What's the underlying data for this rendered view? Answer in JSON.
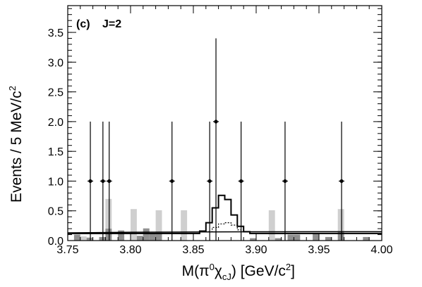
{
  "chart_data": {
    "type": "histogram",
    "panel_label": "(c)",
    "panel_title": "J=2",
    "xlabel": {
      "prefix": "M(π",
      "sup1": "0",
      "chi": "χ",
      "sub1": "cJ",
      "middle": ")   [GeV/c",
      "sup2": "2",
      "suffix": "]"
    },
    "ylabel": {
      "main": "Events / 5 MeV/c",
      "sup": "2"
    },
    "xlim": [
      3.75,
      4.0
    ],
    "ylim": [
      0,
      3.95
    ],
    "x_ticks": [
      3.75,
      3.8,
      3.85,
      3.9,
      3.95,
      4.0
    ],
    "x_tick_labels": [
      "3.75",
      "3.80",
      "3.85",
      "3.90",
      "3.95",
      "4.00"
    ],
    "y_ticks": [
      0,
      0.5,
      1.0,
      1.5,
      2.0,
      2.5,
      3.0,
      3.5
    ],
    "y_tick_labels": [
      "0.0",
      "0.5",
      "1.0",
      "1.5",
      "2.0",
      "2.5",
      "3.0",
      "3.5"
    ],
    "grid": false,
    "series": [
      {
        "kind": "data_points",
        "points": [
          {
            "x": 3.768,
            "y": 1.0,
            "ylo": 0.0,
            "yhi": 2.0
          },
          {
            "x": 3.778,
            "y": 1.0,
            "ylo": 0.0,
            "yhi": 2.0
          },
          {
            "x": 3.783,
            "y": 1.0,
            "ylo": 0.0,
            "yhi": 2.0
          },
          {
            "x": 3.833,
            "y": 1.0,
            "ylo": 0.0,
            "yhi": 2.0
          },
          {
            "x": 3.863,
            "y": 1.0,
            "ylo": 0.0,
            "yhi": 2.0
          },
          {
            "x": 3.868,
            "y": 2.0,
            "ylo": 0.0,
            "yhi": 3.4
          },
          {
            "x": 3.888,
            "y": 1.0,
            "ylo": 0.0,
            "yhi": 2.0
          },
          {
            "x": 3.923,
            "y": 1.0,
            "ylo": 0.0,
            "yhi": 2.0
          },
          {
            "x": 3.968,
            "y": 1.0,
            "ylo": 0.0,
            "yhi": 2.0
          }
        ]
      },
      {
        "kind": "light_bars",
        "color": "#cfcfcf",
        "bars": [
          {
            "x0": 3.78,
            "x1": 3.785,
            "y": 0.7
          },
          {
            "x0": 3.8,
            "x1": 3.805,
            "y": 0.53
          },
          {
            "x0": 3.81,
            "x1": 3.815,
            "y": 0.21
          },
          {
            "x0": 3.82,
            "x1": 3.825,
            "y": 0.51
          },
          {
            "x0": 3.84,
            "x1": 3.845,
            "y": 0.51
          },
          {
            "x0": 3.91,
            "x1": 3.915,
            "y": 0.51
          },
          {
            "x0": 3.965,
            "x1": 3.97,
            "y": 0.53
          },
          {
            "x0": 3.76,
            "x1": 3.765,
            "y": 0.07
          }
        ]
      },
      {
        "kind": "dark_bars",
        "color": "#8f8f8f",
        "bars": [
          {
            "x0": 3.755,
            "x1": 3.76,
            "y": 0.1
          },
          {
            "x0": 3.765,
            "x1": 3.77,
            "y": 0.05
          },
          {
            "x0": 3.775,
            "x1": 3.78,
            "y": 0.06
          },
          {
            "x0": 3.78,
            "x1": 3.785,
            "y": 0.2
          },
          {
            "x0": 3.79,
            "x1": 3.795,
            "y": 0.17
          },
          {
            "x0": 3.805,
            "x1": 3.81,
            "y": 0.08
          },
          {
            "x0": 3.81,
            "x1": 3.815,
            "y": 0.2
          },
          {
            "x0": 3.815,
            "x1": 3.82,
            "y": 0.13
          },
          {
            "x0": 3.82,
            "x1": 3.825,
            "y": 0.11
          },
          {
            "x0": 3.895,
            "x1": 3.9,
            "y": 0.04
          },
          {
            "x0": 3.915,
            "x1": 3.92,
            "y": 0.04
          },
          {
            "x0": 3.925,
            "x1": 3.93,
            "y": 0.1
          },
          {
            "x0": 3.93,
            "x1": 3.935,
            "y": 0.1
          },
          {
            "x0": 3.945,
            "x1": 3.95,
            "y": 0.12
          },
          {
            "x0": 3.955,
            "x1": 3.96,
            "y": 0.06
          },
          {
            "x0": 3.965,
            "x1": 3.97,
            "y": 0.15
          },
          {
            "x0": 3.985,
            "x1": 3.99,
            "y": 0.06
          }
        ]
      },
      {
        "kind": "fit_step",
        "x_edges": [
          3.75,
          3.855,
          3.86,
          3.865,
          3.87,
          3.875,
          3.88,
          3.885,
          3.89,
          3.895,
          4.0
        ],
        "y": [
          0.12,
          0.16,
          0.3,
          0.55,
          0.76,
          0.69,
          0.43,
          0.24,
          0.15,
          0.12
        ]
      },
      {
        "kind": "dotted_step",
        "x_edges": [
          3.862,
          3.865,
          3.87,
          3.875,
          3.88,
          3.885,
          3.888
        ],
        "y": [
          0.15,
          0.22,
          0.28,
          0.3,
          0.26,
          0.18
        ]
      },
      {
        "kind": "background_line",
        "points": [
          [
            3.75,
            0.13
          ],
          [
            3.8,
            0.14
          ],
          [
            3.85,
            0.145
          ],
          [
            3.9,
            0.148
          ],
          [
            3.95,
            0.15
          ],
          [
            4.0,
            0.15
          ]
        ]
      }
    ]
  }
}
